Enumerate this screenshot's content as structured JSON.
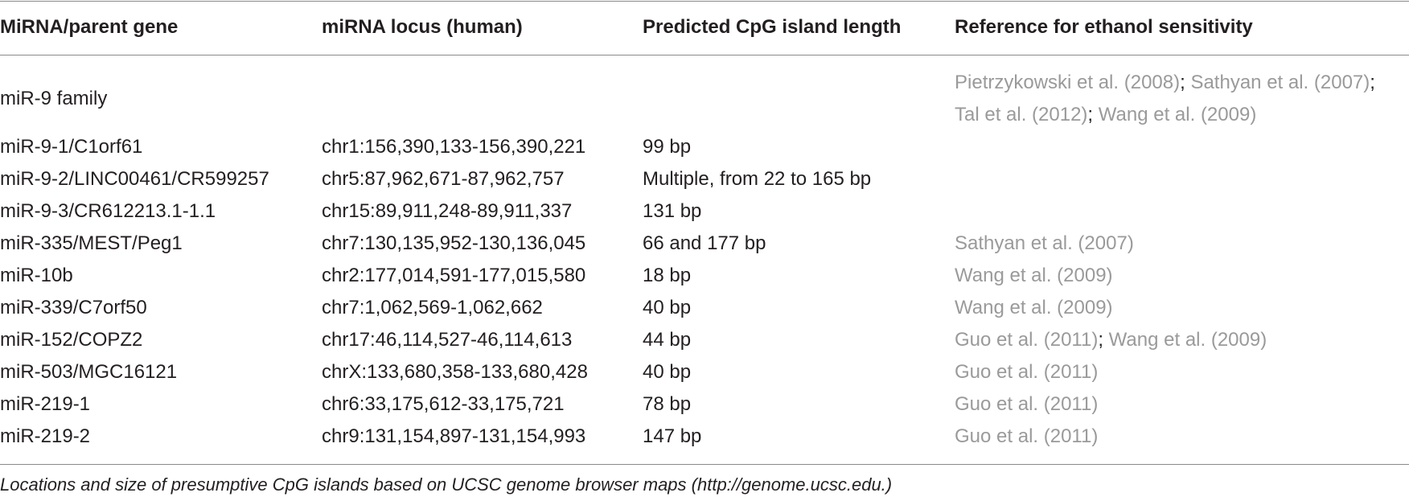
{
  "table": {
    "headers": [
      "MiRNA/parent gene",
      "miRNA locus (human)",
      "Predicted CpG island length",
      "Reference for ethanol sensitivity"
    ],
    "rows": [
      {
        "gene": "miR-9 family",
        "locus": "",
        "length": "",
        "refs": [
          "Pietrzykowski et al. (2008)",
          "Sathyan et al. (2007)",
          "Tal et al. (2012)",
          "Wang et al. (2009)"
        ]
      },
      {
        "gene": "miR-9-1/C1orf61",
        "locus": "chr1:156,390,133-156,390,221",
        "length": "99 bp",
        "refs": []
      },
      {
        "gene": "miR-9-2/LINC00461/CR599257",
        "locus": "chr5:87,962,671-87,962,757",
        "length": "Multiple, from 22 to 165 bp",
        "refs": []
      },
      {
        "gene": "miR-9-3/CR612213.1-1.1",
        "locus": "chr15:89,911,248-89,911,337",
        "length": "131 bp",
        "refs": []
      },
      {
        "gene": "miR-335/MEST/Peg1",
        "locus": "chr7:130,135,952-130,136,045",
        "length": "66 and 177 bp",
        "refs": [
          "Sathyan et al. (2007)"
        ]
      },
      {
        "gene": "miR-10b",
        "locus": "chr2:177,014,591-177,015,580",
        "length": "18 bp",
        "refs": [
          "Wang et al. (2009)"
        ]
      },
      {
        "gene": "miR-339/C7orf50",
        "locus": "chr7:1,062,569-1,062,662",
        "length": "40 bp",
        "refs": [
          "Wang et al. (2009)"
        ]
      },
      {
        "gene": "miR-152/COPZ2",
        "locus": "chr17:46,114,527-46,114,613",
        "length": "44 bp",
        "refs": [
          "Guo et al. (2011)",
          "Wang et al. (2009)"
        ]
      },
      {
        "gene": "miR-503/MGC16121",
        "locus": "chrX:133,680,358-133,680,428",
        "length": "40 bp",
        "refs": [
          "Guo et al. (2011)"
        ]
      },
      {
        "gene": "miR-219-1",
        "locus": "chr6:33,175,612-33,175,721",
        "length": "78 bp",
        "refs": [
          "Guo et al. (2011)"
        ]
      },
      {
        "gene": "miR-219-2",
        "locus": "chr9:131,154,897-131,154,993",
        "length": "147 bp",
        "refs": [
          "Guo et al. (2011)"
        ]
      }
    ],
    "ref_separator": ";",
    "footnote": "Locations and size of presumptive CpG islands based on UCSC genome browser maps (http://genome.ucsc.edu.)"
  },
  "colors": {
    "text": "#231f20",
    "reference_link": "#9a9a9a",
    "rule": "#8a8a8a"
  }
}
